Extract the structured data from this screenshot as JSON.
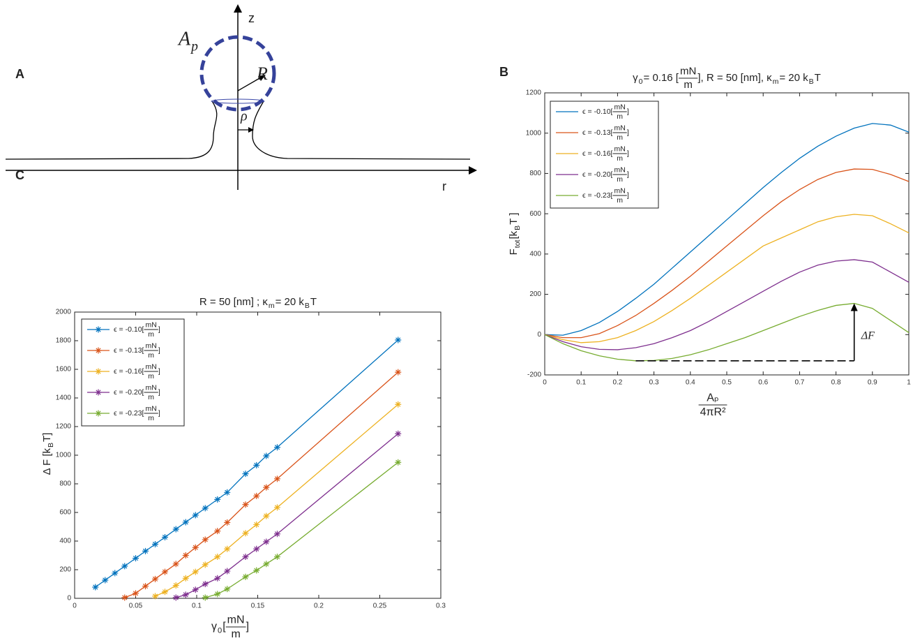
{
  "diagram": {
    "label": "A",
    "z": "z",
    "r": "r",
    "area": [
      {
        "t": "A"
      },
      {
        "sub": "p"
      }
    ],
    "radius": "R",
    "neck": "ρ"
  },
  "chart_data": [
    {
      "type": "line",
      "panel": "B",
      "title": [
        {
          "t": "γ"
        },
        {
          "sub": "0"
        },
        {
          "t": " = 0.16 [ "
        },
        {
          "num": "mN",
          "den": "m"
        },
        {
          "t": " ], R = 50 [nm],   κ"
        },
        {
          "sub": "m"
        },
        {
          "t": "  =  20  k"
        },
        {
          "sub": "B"
        },
        {
          "t": " T"
        }
      ],
      "y_label": [
        {
          "t": "F"
        },
        {
          "sub": "tot"
        },
        {
          "t": " [k"
        },
        {
          "sub": "B"
        },
        {
          "t": " T ]"
        }
      ],
      "x_label": [
        {
          "num": "Aₚ",
          "den": "4πR²"
        }
      ],
      "annotation": "ΔF",
      "legend_unit": [
        {
          "t": " [ "
        },
        {
          "num": "mN",
          "den": "m"
        },
        {
          "t": " ]"
        }
      ],
      "x": [
        0,
        0.05,
        0.1,
        0.15,
        0.2,
        0.25,
        0.3,
        0.35,
        0.4,
        0.45,
        0.5,
        0.55,
        0.6,
        0.65,
        0.7,
        0.75,
        0.8,
        0.85,
        0.9,
        0.95,
        1
      ],
      "series": [
        {
          "name": "ϵ = -0.10",
          "color": "#0072bd",
          "values": [
            0,
            -3,
            20,
            60,
            115,
            180,
            250,
            330,
            410,
            490,
            570,
            650,
            730,
            805,
            875,
            935,
            985,
            1025,
            1048,
            1040,
            1005
          ]
        },
        {
          "name": "ϵ = -0.13",
          "color": "#d95319",
          "values": [
            0,
            -15,
            -15,
            5,
            45,
            95,
            155,
            220,
            290,
            365,
            440,
            515,
            590,
            660,
            720,
            770,
            805,
            822,
            820,
            795,
            760
          ]
        },
        {
          "name": "ϵ = -0.16",
          "color": "#edb120",
          "values": [
            0,
            -25,
            -40,
            -35,
            -15,
            20,
            65,
            120,
            180,
            245,
            310,
            375,
            440,
            480,
            520,
            560,
            585,
            597,
            590,
            550,
            505
          ]
        },
        {
          "name": "ϵ = -0.20",
          "color": "#7e2f8e",
          "values": [
            0,
            -35,
            -60,
            -73,
            -75,
            -65,
            -45,
            -15,
            20,
            65,
            115,
            165,
            215,
            265,
            310,
            345,
            365,
            372,
            360,
            310,
            260
          ]
        },
        {
          "name": "ϵ = -0.23",
          "color": "#77ac30",
          "values": [
            0,
            -45,
            -80,
            -105,
            -122,
            -130,
            -128,
            -118,
            -100,
            -75,
            -45,
            -15,
            20,
            55,
            90,
            120,
            145,
            155,
            130,
            70,
            10
          ]
        }
      ],
      "xlim": [
        0,
        1
      ],
      "xticks": [
        0,
        0.1,
        0.2,
        0.3,
        0.4,
        0.5,
        0.6,
        0.7,
        0.8,
        0.9,
        1
      ],
      "ylim": [
        -200,
        1200
      ],
      "yticks": [
        -200,
        0,
        200,
        400,
        600,
        800,
        1000,
        1200
      ]
    },
    {
      "type": "line",
      "panel": "C",
      "marker": "star",
      "title": [
        {
          "t": "R  = 50 [nm] ;  κ"
        },
        {
          "sub": "m"
        },
        {
          "t": " =   20 k"
        },
        {
          "sub": "B"
        },
        {
          "t": " T"
        }
      ],
      "y_label": [
        {
          "t": "Δ F [k"
        },
        {
          "sub": "B"
        },
        {
          "t": " T]"
        }
      ],
      "x_label": [
        {
          "t": "γ"
        },
        {
          "sub": "0"
        },
        {
          "t": " ["
        },
        {
          "num": "mN",
          "den": "m"
        },
        {
          "t": "]"
        }
      ],
      "legend_unit": [
        {
          "t": " [ "
        },
        {
          "num": "mN",
          "den": "m"
        },
        {
          "t": " ]"
        }
      ],
      "series": [
        {
          "name": "ϵ = -0.10",
          "color": "#0072bd",
          "x": [
            0.017,
            0.025,
            0.033,
            0.041,
            0.05,
            0.058,
            0.066,
            0.074,
            0.083,
            0.091,
            0.099,
            0.107,
            0.117,
            0.125,
            0.14,
            0.149,
            0.157,
            0.166,
            0.265
          ],
          "values": [
            78,
            127,
            176,
            225,
            280,
            330,
            378,
            427,
            483,
            532,
            581,
            630,
            691,
            740,
            870,
            930,
            995,
            1055,
            1805
          ]
        },
        {
          "name": "ϵ = -0.13",
          "color": "#d95319",
          "x": [
            0.041,
            0.05,
            0.058,
            0.066,
            0.074,
            0.083,
            0.091,
            0.099,
            0.107,
            0.117,
            0.125,
            0.14,
            0.149,
            0.157,
            0.166,
            0.265
          ],
          "values": [
            5,
            35,
            85,
            135,
            185,
            240,
            300,
            355,
            410,
            470,
            530,
            655,
            715,
            775,
            835,
            1580
          ]
        },
        {
          "name": "ϵ = -0.16",
          "color": "#edb120",
          "x": [
            0.066,
            0.074,
            0.083,
            0.091,
            0.099,
            0.107,
            0.117,
            0.125,
            0.14,
            0.149,
            0.157,
            0.166,
            0.265
          ],
          "values": [
            15,
            45,
            90,
            140,
            185,
            235,
            290,
            345,
            455,
            515,
            575,
            635,
            1355
          ]
        },
        {
          "name": "ϵ = -0.20",
          "color": "#7e2f8e",
          "x": [
            0.083,
            0.091,
            0.099,
            0.107,
            0.117,
            0.125,
            0.14,
            0.149,
            0.157,
            0.166,
            0.265
          ],
          "values": [
            5,
            25,
            60,
            100,
            140,
            190,
            290,
            345,
            395,
            450,
            1150
          ]
        },
        {
          "name": "ϵ = -0.23",
          "color": "#77ac30",
          "x": [
            0.107,
            0.117,
            0.125,
            0.14,
            0.149,
            0.157,
            0.166,
            0.265
          ],
          "values": [
            5,
            30,
            65,
            150,
            195,
            240,
            290,
            950
          ]
        }
      ],
      "xlim": [
        0,
        0.3
      ],
      "xticks": [
        0,
        0.05,
        0.1,
        0.15,
        0.2,
        0.25,
        0.3
      ],
      "ylim": [
        0,
        2000
      ],
      "yticks": [
        0,
        200,
        400,
        600,
        800,
        1000,
        1200,
        1400,
        1600,
        1800,
        2000
      ]
    }
  ]
}
